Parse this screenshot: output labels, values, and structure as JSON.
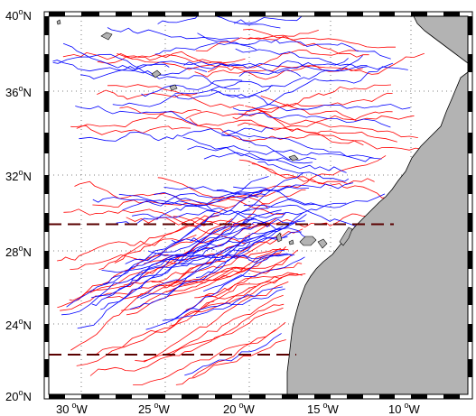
{
  "map": {
    "lat_labels": [
      {
        "lat": 40,
        "deg": "40",
        "hemi": "N"
      },
      {
        "lat": 36,
        "deg": "36",
        "hemi": "N"
      },
      {
        "lat": 32,
        "deg": "32",
        "hemi": "N"
      },
      {
        "lat": 28,
        "deg": "28",
        "hemi": "N"
      },
      {
        "lat": 24,
        "deg": "24",
        "hemi": "N"
      },
      {
        "lat": 20,
        "deg": "20",
        "hemi": "N"
      }
    ],
    "lon_labels": [
      {
        "lon": -30,
        "deg": "30",
        "hemi": "W"
      },
      {
        "lon": -25,
        "deg": "25",
        "hemi": "W"
      },
      {
        "lon": -20,
        "deg": "20",
        "hemi": "W"
      },
      {
        "lon": -15,
        "deg": "15",
        "hemi": "W"
      },
      {
        "lon": -10,
        "deg": "10",
        "hemi": "W"
      }
    ],
    "extent": {
      "lon_min": -31.8,
      "lon_max": -12.0,
      "lat_min": 20,
      "lat_max": 40
    },
    "colors": {
      "land": "#b3b3b3",
      "track_red": "#ff0000",
      "track_blue": "#0000ff",
      "dashed_line": "#5a0000",
      "frame": "#000000"
    },
    "dashed_lines": [
      {
        "lat": 29.0,
        "lon_start": -31.8,
        "lon_end": -10.8
      },
      {
        "lat": 22.1,
        "lon_start": -31.8,
        "lon_end": -17.2
      }
    ]
  }
}
